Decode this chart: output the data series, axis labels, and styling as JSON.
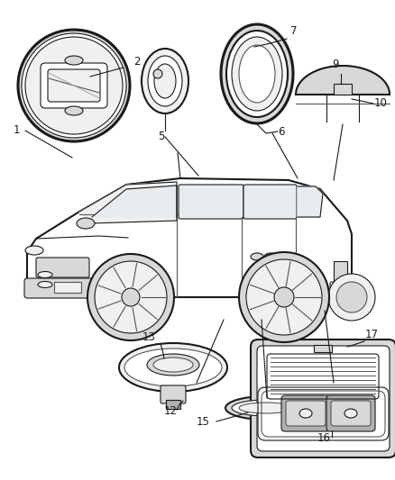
{
  "background_color": "#ffffff",
  "dark": "#1a1a1a",
  "gray": "#555555",
  "light_gray": "#aaaaaa",
  "mid_gray": "#888888",
  "fill_light": "#f0f0f0",
  "fill_mid": "#d8d8d8",
  "fill_dark": "#b0b0b0",
  "figsize": [
    4.38,
    5.33
  ],
  "dpi": 100
}
